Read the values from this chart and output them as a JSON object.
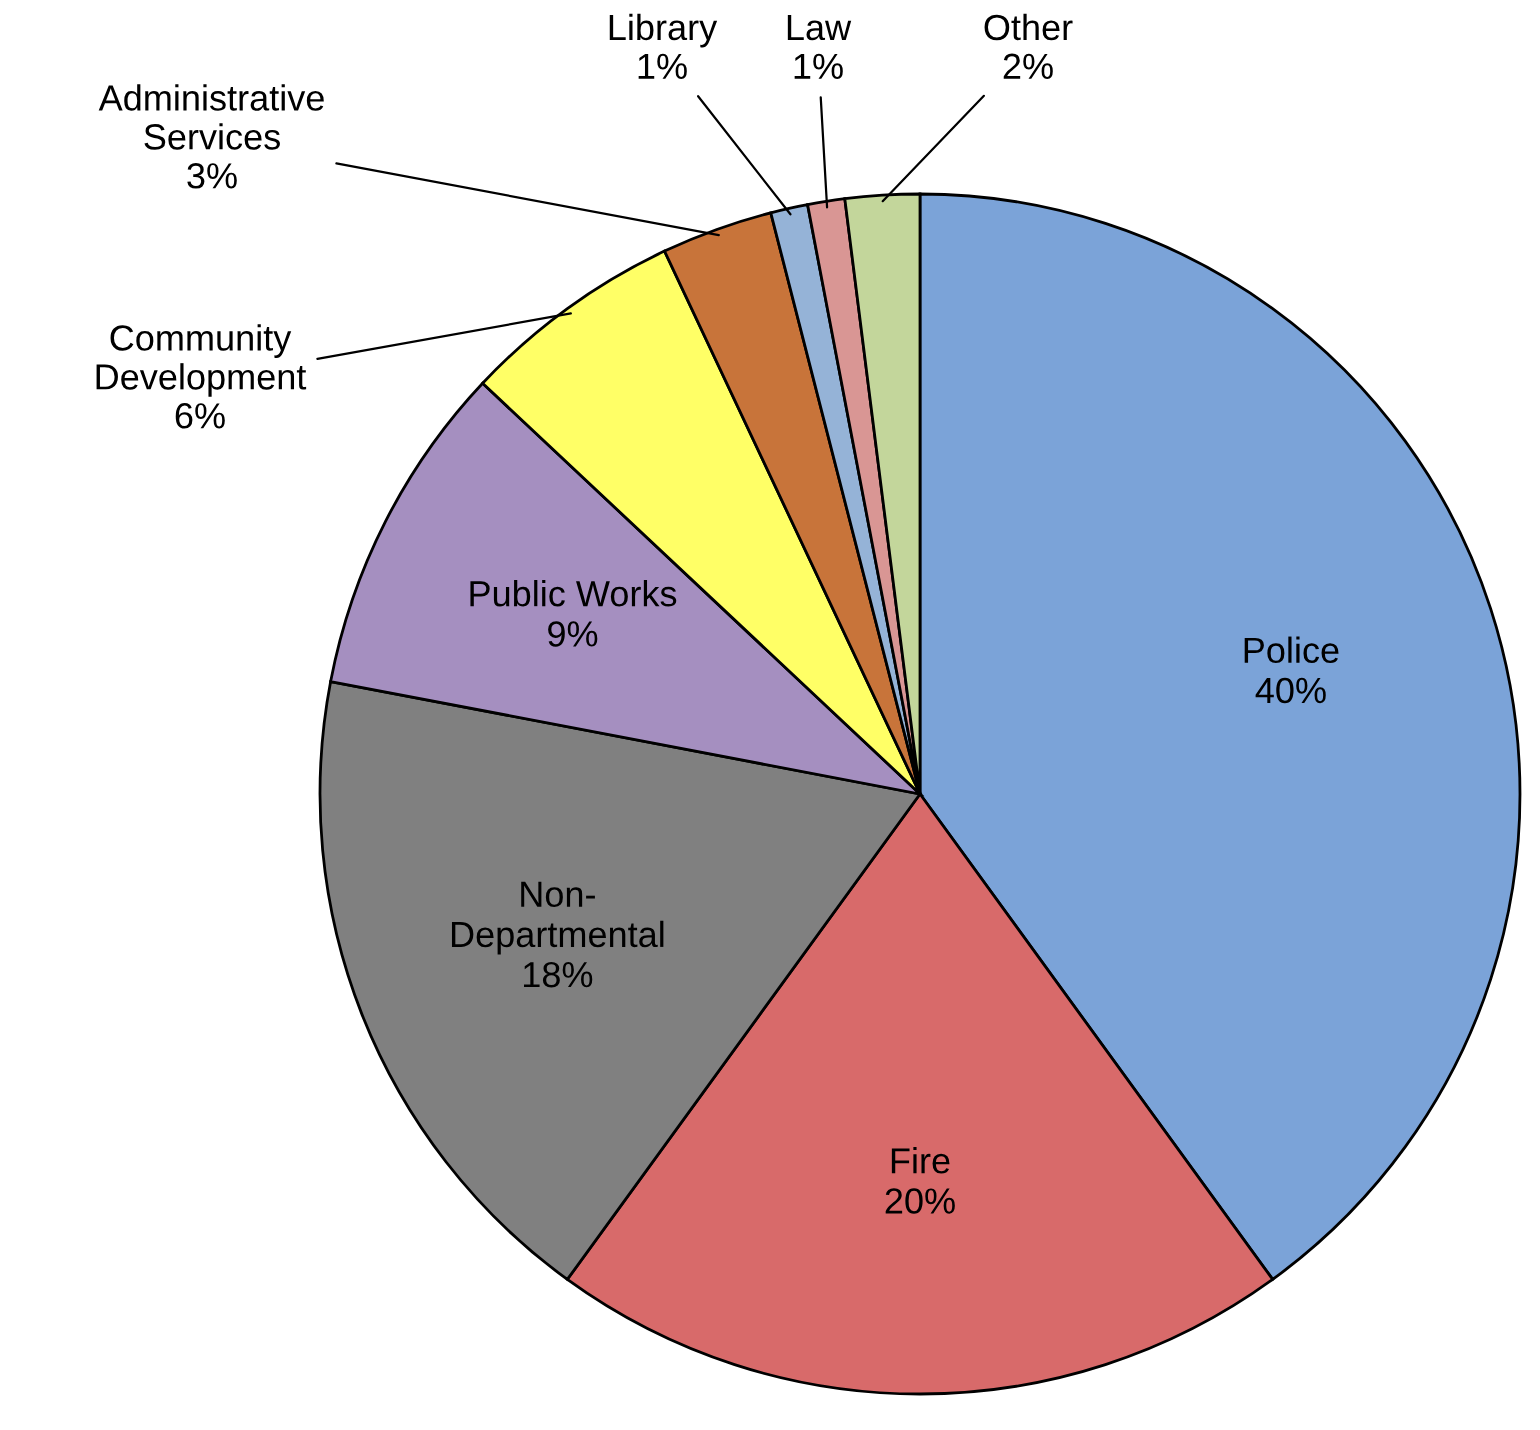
{
  "chart_data": {
    "type": "pie",
    "categories": [
      "Police",
      "Fire",
      "Non-\nDepartmental",
      "Public Works",
      "Community\nDevelopment",
      "Administrative\nServices",
      "Library",
      "Law",
      "Other"
    ],
    "values": [
      40,
      20,
      18,
      9,
      6,
      3,
      1,
      1,
      2
    ],
    "colors": [
      "#7ba3d8",
      "#d86a6a",
      "#808080",
      "#a58fc0",
      "#ffff66",
      "#c8743a",
      "#95b3d7",
      "#d99694",
      "#c3d69b"
    ],
    "value_labels": [
      "40%",
      "20%",
      "18%",
      "9%",
      "6%",
      "3%",
      "1%",
      "1%",
      "2%"
    ]
  }
}
